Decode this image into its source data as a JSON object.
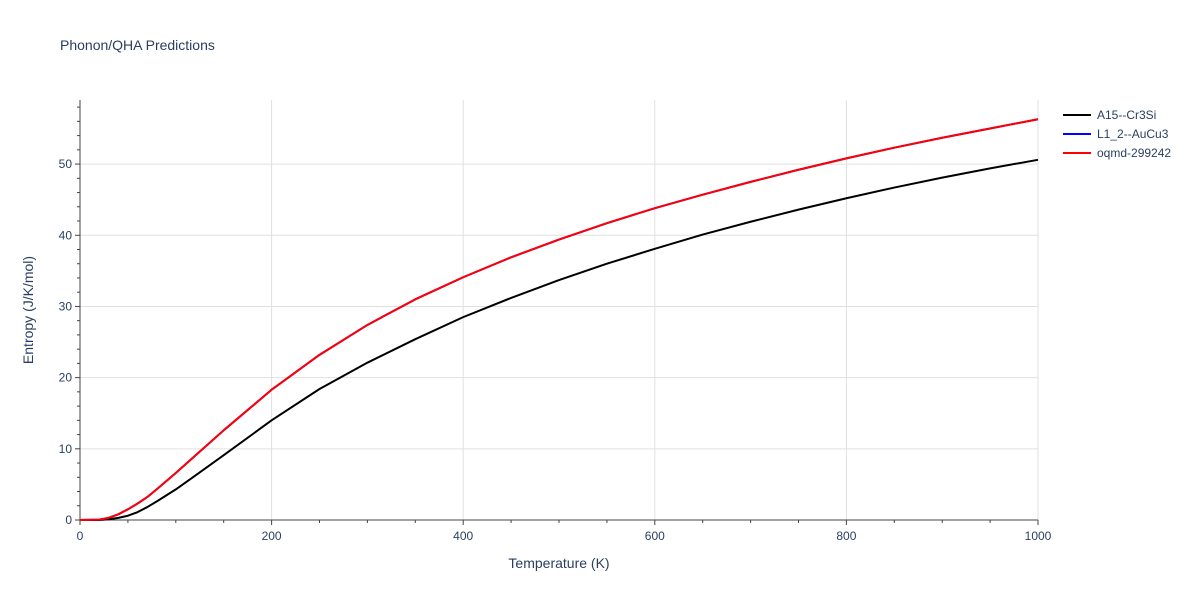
{
  "chart_data": {
    "type": "line",
    "title": "Phonon/QHA Predictions",
    "xlabel": "Temperature (K)",
    "ylabel": "Entropy (J/K/mol)",
    "xlim": [
      0,
      1000
    ],
    "ylim": [
      0,
      59
    ],
    "xticks": [
      0,
      200,
      400,
      600,
      800,
      1000
    ],
    "yticks": [
      0,
      10,
      20,
      30,
      40,
      50
    ],
    "grid": true,
    "legend_position": "top-right",
    "series": [
      {
        "name": "A15--Cr3Si",
        "color": "#000000",
        "x": [
          0,
          20,
          30,
          40,
          50,
          60,
          70,
          80,
          100,
          120,
          150,
          200,
          250,
          300,
          350,
          400,
          450,
          500,
          550,
          600,
          650,
          700,
          750,
          800,
          850,
          900,
          950,
          1000
        ],
        "y": [
          0,
          0,
          0.1,
          0.3,
          0.6,
          1.1,
          1.8,
          2.6,
          4.3,
          6.2,
          9.1,
          14.0,
          18.4,
          22.1,
          25.4,
          28.5,
          31.2,
          33.7,
          36.0,
          38.1,
          40.1,
          41.9,
          43.6,
          45.2,
          46.7,
          48.1,
          49.4,
          50.6
        ]
      },
      {
        "name": "L1_2--AuCu3",
        "color": "#0000ff",
        "x": [
          0,
          20,
          30,
          40,
          50,
          60,
          70,
          80,
          100,
          120,
          150,
          200,
          250,
          300,
          350,
          400,
          450,
          500,
          550,
          600,
          650,
          700,
          750,
          800,
          850,
          900,
          950,
          1000
        ],
        "y": [
          0,
          0.05,
          0.3,
          0.8,
          1.5,
          2.3,
          3.2,
          4.3,
          6.6,
          9.0,
          12.6,
          18.3,
          23.2,
          27.4,
          31.0,
          34.1,
          36.9,
          39.4,
          41.7,
          43.8,
          45.7,
          47.5,
          49.2,
          50.8,
          52.3,
          53.7,
          55.0,
          56.3
        ]
      },
      {
        "name": "oqmd-299242",
        "color": "#ff0000",
        "x": [
          0,
          20,
          30,
          40,
          50,
          60,
          70,
          80,
          100,
          120,
          150,
          200,
          250,
          300,
          350,
          400,
          450,
          500,
          550,
          600,
          650,
          700,
          750,
          800,
          850,
          900,
          950,
          1000
        ],
        "y": [
          0,
          0.05,
          0.3,
          0.8,
          1.5,
          2.3,
          3.2,
          4.3,
          6.6,
          9.0,
          12.6,
          18.3,
          23.2,
          27.4,
          31.0,
          34.1,
          36.9,
          39.4,
          41.7,
          43.8,
          45.7,
          47.5,
          49.2,
          50.8,
          52.3,
          53.7,
          55.0,
          56.3
        ]
      }
    ]
  }
}
